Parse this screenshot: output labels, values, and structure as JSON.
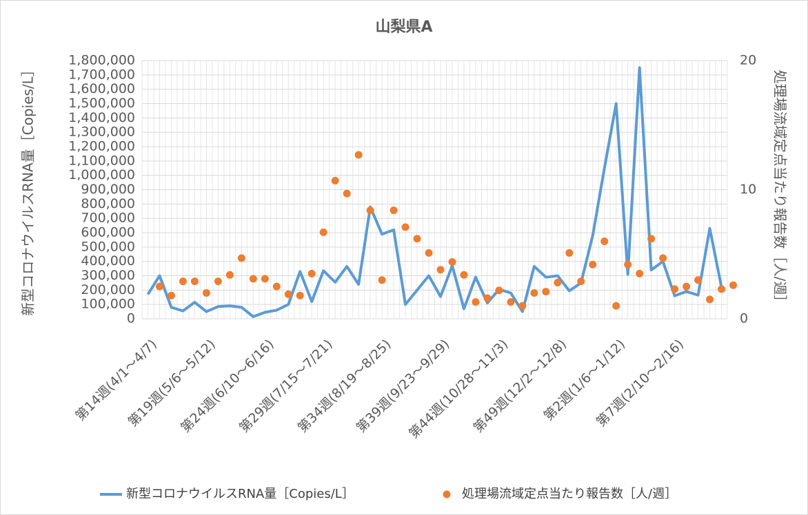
{
  "chart_data": {
    "type": "line-scatter",
    "title": "山梨県A",
    "y_label": "新型コロナウイルスRNA量［Copies/L］",
    "y2_label": "処理場流域定点当たり報告数［人/週］",
    "categories": [
      "第14週(4/1～4/7)",
      null,
      null,
      null,
      null,
      "第19週(5/6～5/12)",
      null,
      null,
      null,
      null,
      "第24週(6/10～6/16)",
      null,
      null,
      null,
      null,
      "第29週(7/15～7/21)",
      null,
      null,
      null,
      null,
      "第34週(8/19～8/25)",
      null,
      null,
      null,
      null,
      "第39週(9/23～9/29)",
      null,
      null,
      null,
      null,
      "第44週(10/28～11/3)",
      null,
      null,
      null,
      null,
      "第49週(12/2～12/8)",
      null,
      null,
      null,
      null,
      "第2週(1/6～1/12)",
      null,
      null,
      null,
      null,
      "第7週(2/10～2/16)",
      null,
      null,
      null,
      null
    ],
    "series": [
      {
        "name": "新型コロナウイルスRNA量［Copies/L］",
        "type": "line",
        "color": "#5b9bd5",
        "values": [
          170000,
          300000,
          80000,
          55000,
          115000,
          50000,
          85000,
          90000,
          80000,
          15000,
          45000,
          60000,
          100000,
          330000,
          120000,
          335000,
          255000,
          365000,
          240000,
          780000,
          590000,
          620000,
          100000,
          200000,
          300000,
          155000,
          370000,
          70000,
          290000,
          110000,
          205000,
          180000,
          50000,
          365000,
          290000,
          300000,
          195000,
          250000,
          580000,
          1050000,
          1500000,
          310000,
          1750000,
          340000,
          400000,
          160000,
          190000,
          165000,
          630000,
          220000
        ]
      },
      {
        "name": "処理場流域定点当たり報告数［人/週］",
        "type": "scatter",
        "axis": "y2",
        "color": "#ed7d31",
        "values": [
          2.5,
          1.8,
          2.9,
          2.9,
          2.0,
          2.9,
          3.4,
          4.7,
          3.1,
          3.1,
          2.5,
          1.9,
          1.8,
          3.5,
          6.7,
          10.7,
          9.7,
          12.7,
          8.4,
          3.0,
          8.4,
          7.1,
          6.2,
          5.1,
          3.8,
          4.4,
          3.4,
          1.3,
          1.6,
          2.2,
          1.3,
          1.0,
          2.0,
          2.1,
          2.8,
          5.1,
          2.9,
          4.2,
          6.0,
          1.0,
          4.2,
          3.5,
          6.2,
          4.7,
          2.3,
          2.5,
          3.0,
          1.5,
          2.3,
          2.6
        ]
      }
    ],
    "ylim": [
      0,
      1800000
    ],
    "yticks": [
      0,
      {
        "value": 100000,
        "label": "100,000"
      },
      {
        "value": 200000,
        "label": "200,000"
      },
      {
        "value": 300000,
        "label": "300,000"
      },
      {
        "value": 400000,
        "label": "400,000"
      },
      {
        "value": 500000,
        "label": "500,000"
      },
      {
        "value": 600000,
        "label": "600,000"
      },
      {
        "value": 700000,
        "label": "700,000"
      },
      {
        "value": 800000,
        "label": "800,000"
      },
      {
        "value": 900000,
        "label": "900,000"
      },
      {
        "value": 1000000,
        "label": "1,000,000"
      },
      {
        "value": 1100000,
        "label": "1,100,000"
      },
      {
        "value": 1200000,
        "label": "1,200,000"
      },
      {
        "value": 1300000,
        "label": "1,300,000"
      },
      {
        "value": 1400000,
        "label": "1,400,000"
      },
      {
        "value": 1500000,
        "label": "1,500,000"
      },
      {
        "value": 1600000,
        "label": "1,600,000"
      },
      {
        "value": 1700000,
        "label": "1,700,000"
      },
      {
        "value": 1800000,
        "label": "1,800,000"
      }
    ],
    "y2lim": [
      0,
      20
    ],
    "y2ticks": [
      0,
      10,
      20
    ],
    "grid": true,
    "legend": "bottom"
  }
}
